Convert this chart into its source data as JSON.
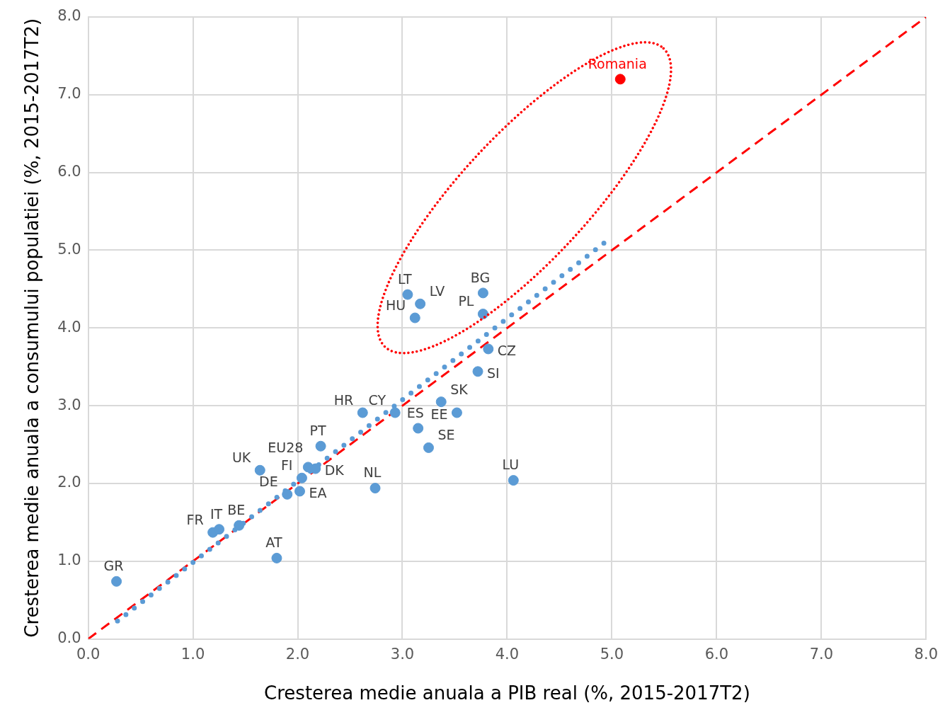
{
  "chart_data": {
    "type": "scatter",
    "xlabel": "Cresterea medie anuala a PIB real (%, 2015-2017T2)",
    "ylabel": "Cresterea medie anuala a consumului populatiei (%, 2015-2017T2)",
    "xlim": [
      0,
      8
    ],
    "ylim": [
      0,
      8
    ],
    "xticks": [
      {
        "value": 0,
        "label": "0.0"
      },
      {
        "value": 1,
        "label": "1.0"
      },
      {
        "value": 2,
        "label": "2.0"
      },
      {
        "value": 3,
        "label": "3.0"
      },
      {
        "value": 4,
        "label": "4.0"
      },
      {
        "value": 5,
        "label": "5.0"
      },
      {
        "value": 6,
        "label": "6.0"
      },
      {
        "value": 7,
        "label": "7.0"
      },
      {
        "value": 8,
        "label": "8.0"
      }
    ],
    "yticks": [
      {
        "value": 0,
        "label": "0.0"
      },
      {
        "value": 1,
        "label": "1.0"
      },
      {
        "value": 2,
        "label": "2.0"
      },
      {
        "value": 3,
        "label": "3.0"
      },
      {
        "value": 4,
        "label": "4.0"
      },
      {
        "value": 5,
        "label": "5.0"
      },
      {
        "value": 6,
        "label": "6.0"
      },
      {
        "value": 7,
        "label": "7.0"
      },
      {
        "value": 8,
        "label": "8.0"
      }
    ],
    "grid": true,
    "legend": false,
    "marker": "circle",
    "series": [
      {
        "type": "scatter",
        "color": "#5b9bd5",
        "x": [
          0.27,
          1.19,
          1.25,
          1.44,
          1.64,
          1.8,
          1.9,
          2.02,
          2.04,
          2.1,
          2.17,
          2.22,
          2.62,
          2.93,
          3.15,
          3.25,
          3.37,
          3.52,
          3.72,
          3.82,
          3.05,
          3.17,
          3.12,
          3.77,
          3.77,
          2.74,
          4.06,
          5.08
        ],
        "values": [
          0.74,
          1.37,
          1.41,
          1.46,
          2.17,
          1.04,
          1.86,
          1.9,
          2.07,
          2.21,
          2.19,
          2.48,
          2.91,
          2.91,
          2.71,
          2.46,
          3.05,
          2.91,
          3.44,
          3.73,
          4.43,
          4.31,
          4.13,
          4.45,
          4.18,
          1.94,
          2.04,
          7.2
        ],
        "colors": [
          "#5b9bd5",
          "#5b9bd5",
          "#5b9bd5",
          "#5b9bd5",
          "#5b9bd5",
          "#5b9bd5",
          "#5b9bd5",
          "#5b9bd5",
          "#5b9bd5",
          "#5b9bd5",
          "#5b9bd5",
          "#5b9bd5",
          "#5b9bd5",
          "#5b9bd5",
          "#5b9bd5",
          "#5b9bd5",
          "#5b9bd5",
          "#5b9bd5",
          "#5b9bd5",
          "#5b9bd5",
          "#5b9bd5",
          "#5b9bd5",
          "#5b9bd5",
          "#5b9bd5",
          "#5b9bd5",
          "#5b9bd5",
          "#5b9bd5",
          "#ff0000"
        ],
        "value_labels": [
          "GR",
          "FR",
          "IT",
          "BE",
          "UK",
          "AT",
          "DE",
          "EA",
          "FI",
          "EU28",
          "DK",
          "PT",
          "HR",
          "CY",
          "ES",
          "SE",
          "SK",
          "EE",
          "SI",
          "CZ",
          "LT",
          "LV",
          "HU",
          "BG",
          "PL",
          "NL",
          "LU",
          "Romania"
        ]
      },
      {
        "type": "line",
        "color": "#5b9bd5",
        "line_style": "dotted",
        "marker": "none",
        "x": [
          0.28,
          5.0
        ],
        "values": [
          0.23,
          5.17
        ]
      },
      {
        "type": "line",
        "color": "#ff0000",
        "line_style": "dashed",
        "marker": "none",
        "x": [
          0,
          8
        ],
        "values": [
          0,
          8
        ]
      }
    ]
  }
}
